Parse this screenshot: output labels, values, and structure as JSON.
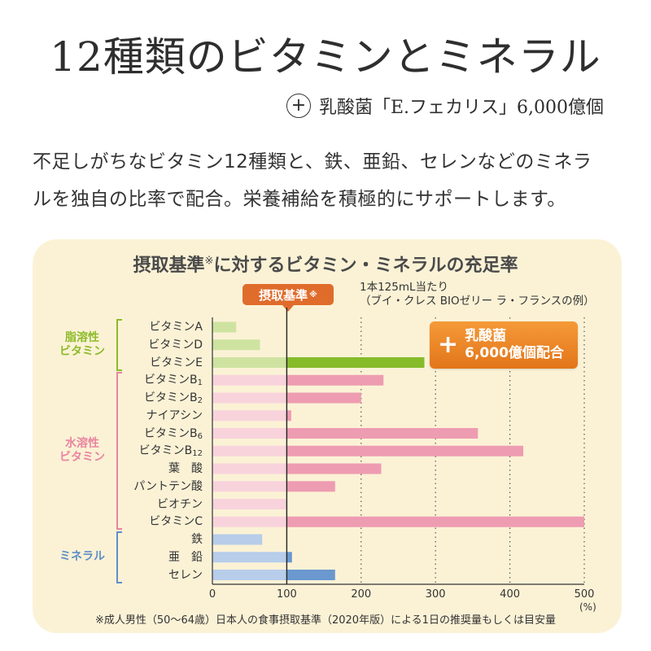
{
  "header": {
    "title": "12種類のビタミンとミネラル",
    "subtitle_plus": "+",
    "subtitle": "乳酸菌「E.フェカリス」6,000億個"
  },
  "description": {
    "line1": "不足しがちなビタミン12種類と、鉄、亜鉛、セレンなどのミネラ",
    "line2": "ルを独自の比率で配合。栄養補給を積極的にサポートします。"
  },
  "chart_panel": {
    "title_main": "摂取基準",
    "title_mark": "※",
    "title_rest": "に対するビタミン・ミネラルの充足率",
    "standard_badge": "摂取基準",
    "standard_badge_mark": "※",
    "note_line1": "1本125mL当たり",
    "note_line2": "（ブイ・クレス BIOゼリー ラ・フランスの例）",
    "lacto_plus": "+",
    "lacto_line1": "乳酸菌",
    "lacto_line2": "6,000億個配合",
    "footnote": "※成人男性（50〜64歳）日本人の食事摂取基準（2020年版）による1日の推奨量もしくは目安量",
    "groups": [
      {
        "line1": "脂溶性",
        "line2": "ビタミン",
        "color": "#8dbb2a"
      },
      {
        "line1": "水溶性",
        "line2": "ビタミン",
        "color": "#e9849f"
      },
      {
        "line1": "ミネラル",
        "line2": "",
        "color": "#5f8fc7"
      }
    ]
  },
  "chart_data": {
    "type": "bar",
    "orientation": "horizontal",
    "xlabel": "(%)",
    "xlim": [
      0,
      500
    ],
    "xticks": [
      0,
      100,
      200,
      300,
      400,
      500
    ],
    "reference_line": 100,
    "gridlines": [
      200,
      300,
      400,
      500
    ],
    "categories": [
      {
        "name": "ビタミンA",
        "value": 32,
        "group": 0
      },
      {
        "name": "ビタミンD",
        "value": 64,
        "group": 0
      },
      {
        "name": "ビタミンE",
        "value": 285,
        "group": 0
      },
      {
        "name": "ビタミンB",
        "sub": "1",
        "value": 230,
        "group": 1
      },
      {
        "name": "ビタミンB",
        "sub": "2",
        "value": 200,
        "group": 1
      },
      {
        "name": "ナイアシン",
        "value": 106,
        "group": 1
      },
      {
        "name": "ビタミンB",
        "sub": "6",
        "value": 357,
        "group": 1
      },
      {
        "name": "ビタミンB",
        "sub": "12",
        "value": 418,
        "group": 1
      },
      {
        "name": "葉　酸",
        "value": 227,
        "group": 1
      },
      {
        "name": "パントテン酸",
        "value": 165,
        "group": 1
      },
      {
        "name": "ビオチン",
        "value": 100,
        "group": 1
      },
      {
        "name": "ビタミンC",
        "value": 500,
        "group": 1
      },
      {
        "name": "鉄",
        "value": 67,
        "group": 2
      },
      {
        "name": "亜　鉛",
        "value": 107,
        "group": 2
      },
      {
        "name": "セレン",
        "value": 165,
        "group": 2
      }
    ],
    "colors": {
      "group0_light": "#cfe3a1",
      "group0_dark": "#86bb2a",
      "group1_light": "#f8d3dc",
      "group1_dark": "#ee9cb2",
      "group2_light": "#b7cdea",
      "group2_dark": "#6a98cf",
      "axis": "#333333"
    }
  }
}
